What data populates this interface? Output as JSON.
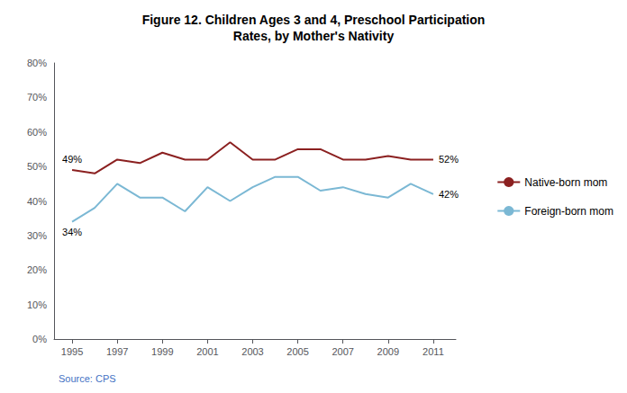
{
  "chart_data": {
    "type": "line",
    "title": "Figure 12. Children Ages 3 and 4, Preschool Participation\nRates, by Mother's Nativity",
    "source": "Source: CPS",
    "x": [
      1995,
      1996,
      1997,
      1998,
      1999,
      2000,
      2001,
      2002,
      2003,
      2004,
      2005,
      2006,
      2007,
      2008,
      2009,
      2010,
      2011
    ],
    "series": [
      {
        "name": "Native-born mom",
        "color": "#8B2020",
        "values": [
          0.49,
          0.48,
          0.52,
          0.51,
          0.54,
          0.52,
          0.52,
          0.57,
          0.52,
          0.52,
          0.55,
          0.55,
          0.52,
          0.52,
          0.53,
          0.52,
          0.52
        ]
      },
      {
        "name": "Foreign-born mom",
        "color": "#7BB8D4",
        "values": [
          0.34,
          0.38,
          0.45,
          0.41,
          0.41,
          0.37,
          0.44,
          0.4,
          0.44,
          0.47,
          0.47,
          0.43,
          0.44,
          0.42,
          0.41,
          0.45,
          0.42
        ]
      }
    ],
    "annotations": [
      {
        "text": "49%",
        "x": 1995,
        "y": 0.49
      },
      {
        "text": "34%",
        "x": 1995,
        "y": 0.34
      },
      {
        "text": "52%",
        "x": 2011,
        "y": 0.52
      },
      {
        "text": "42%",
        "x": 2011,
        "y": 0.42
      }
    ],
    "xlim": [
      1994.2,
      2012.0
    ],
    "xticks": [
      1995,
      1997,
      1999,
      2001,
      2003,
      2005,
      2007,
      2009,
      2011
    ],
    "ylim": [
      0,
      0.8
    ],
    "yticks": [
      {
        "value": 0,
        "label": "0%"
      },
      {
        "value": 0.1,
        "label": "10%"
      },
      {
        "value": 0.2,
        "label": "20%"
      },
      {
        "value": 0.3,
        "label": "30%"
      },
      {
        "value": 0.4,
        "label": "40%"
      },
      {
        "value": 0.5,
        "label": "50%"
      },
      {
        "value": 0.6,
        "label": "60%"
      },
      {
        "value": 0.7,
        "label": "70%"
      },
      {
        "value": 0.8,
        "label": "80%"
      }
    ],
    "grid": false,
    "legend": "right"
  }
}
